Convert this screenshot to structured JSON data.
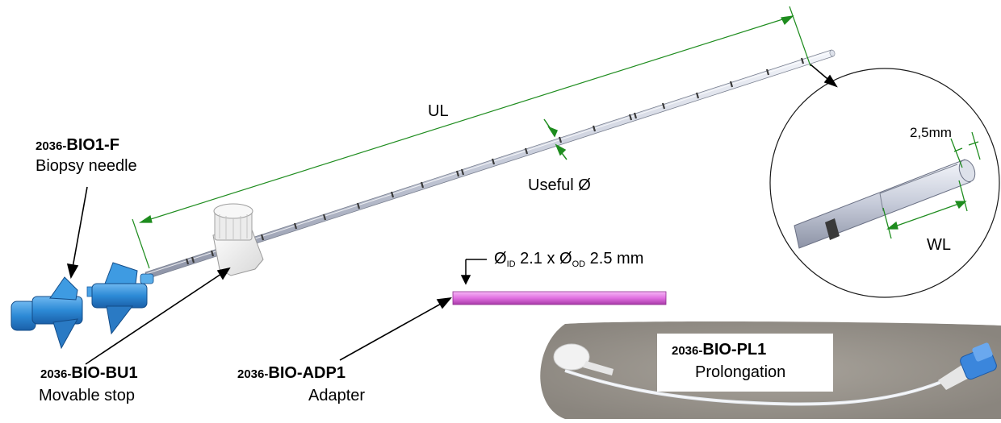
{
  "labels": {
    "needle": {
      "code_prefix": "2036-",
      "code": "BIO1-F",
      "description": "Biopsy needle"
    },
    "stop": {
      "code_prefix": "2036-",
      "code": "BIO-BU1",
      "description": "Movable stop"
    },
    "adapter": {
      "code_prefix": "2036-",
      "code": "BIO-ADP1",
      "description": "Adapter"
    },
    "prolongation": {
      "code_prefix": "2036-",
      "code": "BIO-PL1",
      "description": "Prolongation"
    }
  },
  "dimensions": {
    "ul": "UL",
    "useful": "Useful Ø",
    "tip": "2,5mm",
    "wl": "WL",
    "adapter_spec": {
      "phi_id": "Ø",
      "id_sub": "ID",
      "id_value": "2.1 x",
      "phi_od": "Ø",
      "od_sub": "OD",
      "od_value": "2.5 mm"
    }
  },
  "colors": {
    "dimension_line": "#1e8c1e",
    "hub_blue": "#2f8fd8",
    "adapter_tube": "#e070e0",
    "needle_metal": "#c9cedc",
    "photo_background": "#a09a92"
  },
  "icons": [
    "biopsy-needle-illustration",
    "movable-stop-illustration",
    "adapter-tube-illustration",
    "prolongation-tube-photo",
    "tip-detail-magnifier"
  ]
}
